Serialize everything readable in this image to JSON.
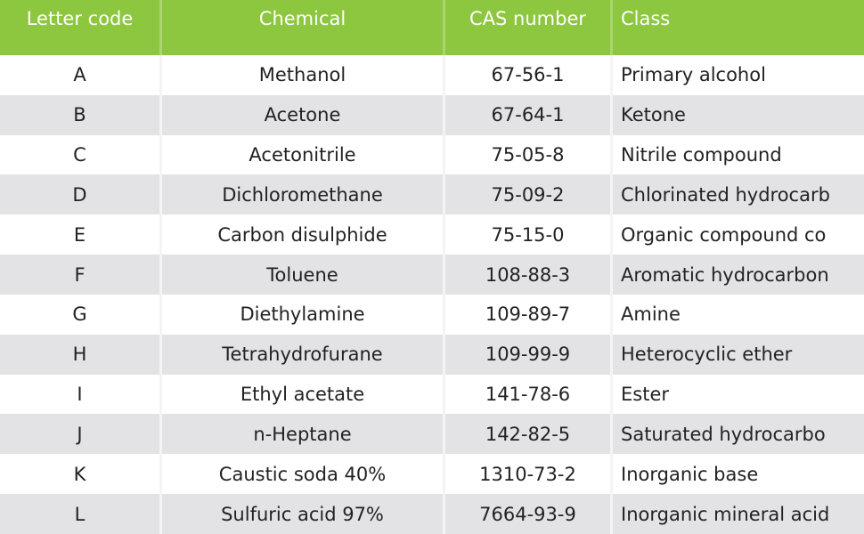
{
  "table": {
    "header": [
      "Letter code",
      "Chemical",
      "CAS number",
      "Class"
    ],
    "rows": [
      [
        "A",
        "Methanol",
        "67-56-1",
        "Primary alcohol"
      ],
      [
        "B",
        "Acetone",
        "67-64-1",
        "Ketone"
      ],
      [
        "C",
        "Acetonitrile",
        "75-05-8",
        "Nitrile compound"
      ],
      [
        "D",
        "Dichloromethane",
        "75-09-2",
        "Chlorinated hydrocarb"
      ],
      [
        "E",
        "Carbon disulphide",
        "75-15-0",
        "Organic compound co"
      ],
      [
        "F",
        "Toluene",
        "108-88-3",
        "Aromatic hydrocarbon"
      ],
      [
        "G",
        "Diethylamine",
        "109-89-7",
        "Amine"
      ],
      [
        "H",
        "Tetrahydrofurane",
        "109-99-9",
        "Heterocyclic ether"
      ],
      [
        "I",
        "Ethyl acetate",
        "141-78-6",
        "Ester"
      ],
      [
        "J",
        "n-Heptane",
        "142-82-5",
        "Saturated hydrocarbo"
      ],
      [
        "K",
        "Caustic soda 40%",
        "1310-73-2",
        "Inorganic base"
      ],
      [
        "L",
        "Sulfuric acid 97%",
        "7664-93-9",
        "Inorganic mineral acid"
      ]
    ]
  }
}
